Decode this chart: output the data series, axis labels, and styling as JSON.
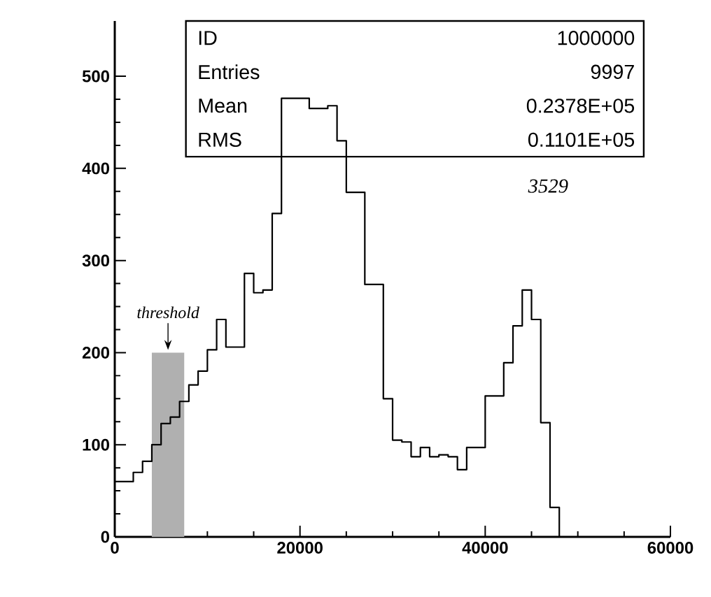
{
  "chart_data": {
    "type": "histogram",
    "bins": [
      0,
      1000,
      2000,
      3000,
      4000,
      5000,
      6000,
      7000,
      8000,
      9000,
      10000,
      11000,
      12000,
      13000,
      14000,
      15000,
      16000,
      17000,
      18000,
      19000,
      20000,
      21000,
      22000,
      23000,
      24000,
      25000,
      26000,
      27000,
      28000,
      29000,
      30000,
      31000,
      32000,
      33000,
      34000,
      35000,
      36000,
      37000,
      38000,
      39000,
      40000,
      41000,
      42000,
      43000,
      44000,
      45000,
      46000,
      47000,
      48000,
      49000,
      50000,
      51000,
      52000,
      53000,
      54000,
      55000,
      56000,
      57000,
      58000,
      59000,
      60000
    ],
    "values": [
      60,
      60,
      70,
      82,
      100,
      123,
      130,
      147,
      165,
      180,
      203,
      236,
      206,
      206,
      286,
      265,
      268,
      351,
      476,
      476,
      476,
      465,
      465,
      468,
      430,
      374,
      374,
      274,
      274,
      150,
      105,
      103,
      87,
      97,
      87,
      89,
      87,
      73,
      97,
      97,
      153,
      153,
      189,
      229,
      268,
      236,
      124,
      32,
      0,
      0,
      0,
      0,
      0,
      0,
      0,
      0,
      0,
      0,
      0,
      0
    ],
    "color": "#000000",
    "xlim": [
      0,
      60000
    ],
    "ylim": [
      0,
      560
    ],
    "xticks": [
      0,
      20000,
      40000,
      60000
    ],
    "yticks": [
      0,
      100,
      200,
      300,
      400,
      500
    ],
    "bands": [
      {
        "axis": "x",
        "from": 4000,
        "to": 7500,
        "label": "threshold",
        "color": "#b0b0b0"
      }
    ],
    "annotations": [
      "ID",
      "1000000",
      "Entries",
      "9997",
      "Mean",
      "0.2378E+05",
      "RMS",
      "0.1101E+05",
      "3529"
    ],
    "grid": false
  }
}
